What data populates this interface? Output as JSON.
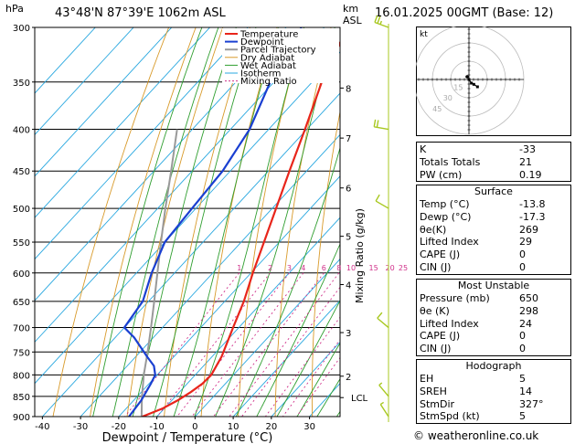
{
  "header": {
    "location": "43°48'N  87°39'E  1062m  ASL",
    "datetime": "16.01.2025  00GMT  (Base: 12)",
    "p_unit": "hPa",
    "km_unit": "km",
    "asl": "ASL"
  },
  "chart_data": {
    "type": "skew-t",
    "xlabel": "Dewpoint / Temperature (°C)",
    "ylabel_right": "Mixing Ratio (g/kg)",
    "p_range": [
      300,
      900
    ],
    "pressure_ticks": [
      300,
      350,
      400,
      450,
      500,
      550,
      600,
      650,
      700,
      750,
      800,
      850,
      900
    ],
    "temp_ticks": [
      -40,
      -30,
      -20,
      -10,
      0,
      10,
      20,
      30
    ],
    "temp_range": [
      -42,
      38
    ],
    "km_ticks": [
      {
        "label": "8",
        "p": 356
      },
      {
        "label": "7",
        "p": 410
      },
      {
        "label": "6",
        "p": 472
      },
      {
        "label": "5",
        "p": 541
      },
      {
        "label": "4",
        "p": 620
      },
      {
        "label": "3",
        "p": 710
      },
      {
        "label": "2",
        "p": 803
      }
    ],
    "lcl": {
      "label": "LCL",
      "p": 853
    },
    "mixing_ratio_labels": [
      "1",
      "2",
      "3",
      "4",
      "6",
      "8",
      "10",
      "15",
      "20",
      "25"
    ],
    "mixing_ratio_values": [
      1,
      2,
      3,
      4,
      6,
      8,
      10,
      15,
      20,
      25
    ],
    "legend": [
      "Temperature",
      "Dewpoint",
      "Parcel Trajectory",
      "Dry Adiabat",
      "Wet Adiabat",
      "Isotherm",
      "Mixing Ratio"
    ],
    "temperature": {
      "name": "Temperature",
      "points": [
        {
          "p": 900,
          "t": -13.8
        },
        {
          "p": 880,
          "t": -10.5
        },
        {
          "p": 860,
          "t": -8.5
        },
        {
          "p": 840,
          "t": -7.0
        },
        {
          "p": 820,
          "t": -6.0
        },
        {
          "p": 800,
          "t": -5.8
        },
        {
          "p": 760,
          "t": -7.5
        },
        {
          "p": 700,
          "t": -11.5
        },
        {
          "p": 650,
          "t": -15.0
        },
        {
          "p": 600,
          "t": -19.5
        },
        {
          "p": 550,
          "t": -24.0
        },
        {
          "p": 500,
          "t": -29.0
        },
        {
          "p": 450,
          "t": -34.5
        },
        {
          "p": 400,
          "t": -40.5
        },
        {
          "p": 350,
          "t": -47.5
        },
        {
          "p": 300,
          "t": -54.0
        }
      ]
    },
    "dewpoint": {
      "name": "Dewpoint",
      "points": [
        {
          "p": 900,
          "t": -17.3
        },
        {
          "p": 860,
          "t": -18.0
        },
        {
          "p": 820,
          "t": -19.5
        },
        {
          "p": 800,
          "t": -20.5
        },
        {
          "p": 780,
          "t": -23.0
        },
        {
          "p": 760,
          "t": -27.0
        },
        {
          "p": 720,
          "t": -35.0
        },
        {
          "p": 700,
          "t": -40.0
        },
        {
          "p": 650,
          "t": -41.5
        },
        {
          "p": 600,
          "t": -46.0
        },
        {
          "p": 550,
          "t": -50.0
        },
        {
          "p": 500,
          "t": -51.0
        },
        {
          "p": 450,
          "t": -52.0
        },
        {
          "p": 400,
          "t": -55.0
        },
        {
          "p": 350,
          "t": -61.0
        },
        {
          "p": 300,
          "t": -66.0
        }
      ]
    },
    "parcel": {
      "name": "Parcel Trajectory",
      "points": [
        {
          "p": 900,
          "t": -14.0
        },
        {
          "p": 853,
          "t": -18.5
        },
        {
          "p": 800,
          "t": -23.5
        },
        {
          "p": 750,
          "t": -28.0
        },
        {
          "p": 700,
          "t": -33.0
        },
        {
          "p": 650,
          "t": -38.5
        },
        {
          "p": 600,
          "t": -44.5
        },
        {
          "p": 550,
          "t": -51.0
        },
        {
          "p": 500,
          "t": -58.0
        },
        {
          "p": 450,
          "t": -65.5
        },
        {
          "p": 400,
          "t": -74.0
        }
      ]
    },
    "wind_barbs": [
      {
        "p": 300,
        "dir": 290,
        "speed": 25
      },
      {
        "p": 400,
        "dir": 280,
        "speed": 20
      },
      {
        "p": 500,
        "dir": 300,
        "speed": 10
      },
      {
        "p": 700,
        "dir": 310,
        "speed": 10
      },
      {
        "p": 850,
        "dir": 320,
        "speed": 5
      },
      {
        "p": 900,
        "dir": 327,
        "speed": 5
      }
    ]
  },
  "hodograph": {
    "label": "kt",
    "ring_labels": [
      "15",
      "30",
      "45"
    ],
    "points": [
      {
        "u": 0,
        "v": 0
      },
      {
        "u": 2,
        "v": -3
      },
      {
        "u": 4,
        "v": -4
      },
      {
        "u": 7,
        "v": -6
      }
    ]
  },
  "indices": {
    "rows": [
      {
        "label": "K",
        "value": "-33"
      },
      {
        "label": "Totals Totals",
        "value": "21"
      },
      {
        "label": "PW (cm)",
        "value": "0.19"
      }
    ]
  },
  "surface": {
    "title": "Surface",
    "rows": [
      {
        "label": "Temp (°C)",
        "value": "-13.8"
      },
      {
        "label": "Dewp (°C)",
        "value": "-17.3"
      },
      {
        "label": "θe(K)",
        "value": "269"
      },
      {
        "label": "Lifted Index",
        "value": "29"
      },
      {
        "label": "CAPE (J)",
        "value": "0"
      },
      {
        "label": "CIN (J)",
        "value": "0"
      }
    ]
  },
  "most_unstable": {
    "title": "Most Unstable",
    "rows": [
      {
        "label": "Pressure (mb)",
        "value": "650"
      },
      {
        "label": "θe (K)",
        "value": "298"
      },
      {
        "label": "Lifted Index",
        "value": "24"
      },
      {
        "label": "CAPE (J)",
        "value": "0"
      },
      {
        "label": "CIN (J)",
        "value": "0"
      }
    ]
  },
  "hodograph_table": {
    "title": "Hodograph",
    "rows": [
      {
        "label": "EH",
        "value": "5"
      },
      {
        "label": "SREH",
        "value": "14"
      },
      {
        "label": "StmDir",
        "value": "327°"
      },
      {
        "label": "StmSpd (kt)",
        "value": "5"
      }
    ]
  },
  "copyright": "© weatheronline.co.uk",
  "colors": {
    "temperature": "#e8251b",
    "dewpoint": "#1a3fd1",
    "parcel": "#999999",
    "dry_adiabat": "#d89a2a",
    "wet_adiabat": "#2f9e2f",
    "isotherm": "#2aa8e0",
    "mixing_ratio": "#d0308a",
    "barb": "#a8c820"
  }
}
